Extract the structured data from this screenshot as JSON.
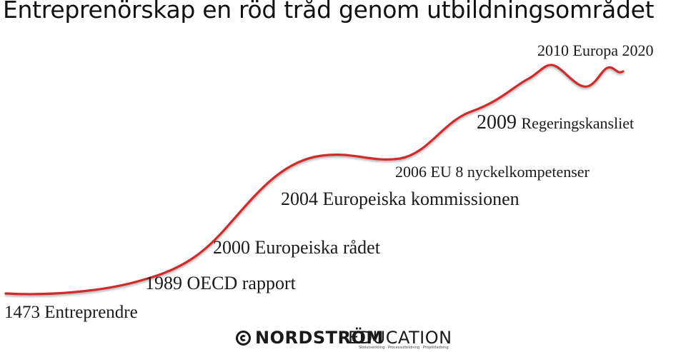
{
  "title": "Entreprenörskap en röd tråd genom utbildningsområdet",
  "colors": {
    "curve": "#d12b2b",
    "text": "#1a1a1a"
  },
  "milestones": {
    "m1473": "1473 Entreprendre",
    "m1989": "1989 OECD rapport",
    "m2000": "2000 Europeiska rådet",
    "m2004": "2004 Europeiska kommissionen",
    "m2006": "2006 EU 8 nyckelkompetenser",
    "m2009_year": "2009",
    "m2009_text": "Regeringskansliet",
    "m2010": "2010 Europa 2020"
  },
  "logo": {
    "brand": "NORDSTRÖM",
    "suffix": "EDUCATION",
    "tagline": "Skolutveckling · Processutbildning · Projektledning"
  }
}
